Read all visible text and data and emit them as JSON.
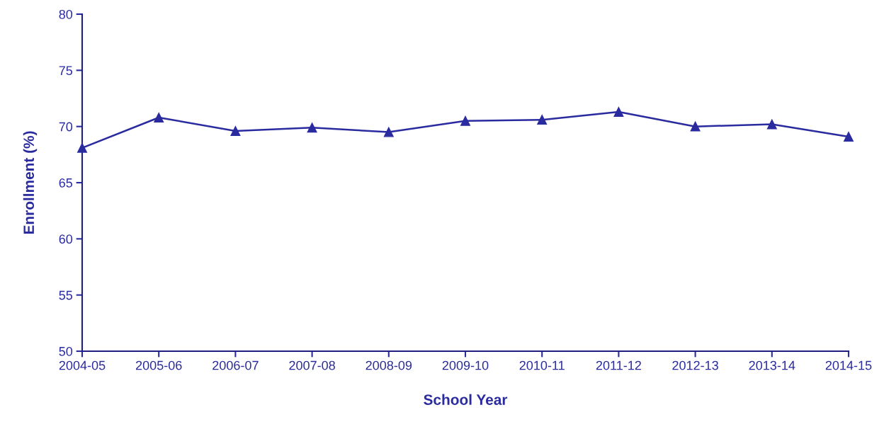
{
  "chart_data": {
    "type": "line",
    "xlabel": "School Year",
    "ylabel": "Enrollment (%)",
    "categories": [
      "2004-05",
      "2005-06",
      "2006-07",
      "2007-08",
      "2008-09",
      "2009-10",
      "2010-11",
      "2011-12",
      "2012-13",
      "2013-14",
      "2014-15"
    ],
    "series": [
      {
        "color": "#2b2ba0",
        "values": [
          68.1,
          70.8,
          69.6,
          69.9,
          69.5,
          70.5,
          70.6,
          71.3,
          70.0,
          70.2,
          69.1
        ]
      }
    ],
    "ylim": [
      50,
      80
    ],
    "yticks": [
      50,
      55,
      60,
      65,
      70,
      75,
      80
    ],
    "grid": false,
    "legend": false,
    "marker": "triangle",
    "line_style": "solid"
  }
}
